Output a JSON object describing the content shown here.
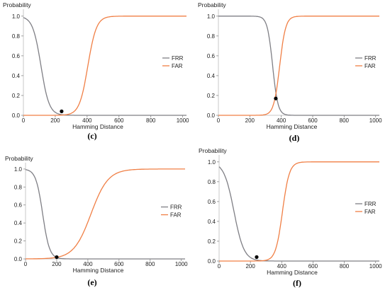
{
  "chart_data": [
    {
      "panel": "(c)",
      "type": "line",
      "ylabel": "Probability",
      "xlabel": "Hamming Distance",
      "xticks": [
        0,
        200,
        400,
        600,
        800,
        1000
      ],
      "yticks": [
        "0.0",
        "0.2",
        "0.4",
        "0.6",
        "0.8",
        "1.0"
      ],
      "xlim": [
        0,
        1024
      ],
      "ylim": [
        0,
        1.07
      ],
      "legend": "right",
      "series": [
        {
          "name": "FRR",
          "color": "#7f7f85",
          "kind": "falling",
          "mid": 110,
          "scale": 26,
          "top": 1.0
        },
        {
          "name": "FAR",
          "color": "#f07f45",
          "kind": "rising",
          "mid": 405,
          "scale": 27,
          "top": 1.0
        }
      ],
      "marker": {
        "x": 240,
        "y": 0.04
      }
    },
    {
      "panel": "(d)",
      "type": "line",
      "ylabel": "Probability",
      "xlabel": "Hamming Distance",
      "xticks": [
        0,
        200,
        400,
        600,
        800,
        1000
      ],
      "yticks": [
        "0.0",
        "0.2",
        "0.4",
        "0.6",
        "0.8",
        "1.0"
      ],
      "xlim": [
        0,
        1024
      ],
      "ylim": [
        0,
        1.07
      ],
      "legend": "right",
      "series": [
        {
          "name": "FRR",
          "color": "#7f7f85",
          "kind": "falling",
          "mid": 345,
          "scale": 17,
          "top": 1.0
        },
        {
          "name": "FAR",
          "color": "#f07f45",
          "kind": "rising",
          "mid": 390,
          "scale": 19,
          "top": 1.0
        }
      ],
      "marker": {
        "x": 365,
        "y": 0.17
      }
    },
    {
      "panel": "(e)",
      "type": "line",
      "ylabel": "Probability",
      "xlabel": "Hamming Distance",
      "xticks": [
        0,
        200,
        400,
        600,
        800,
        1000
      ],
      "yticks": [
        "0.0",
        "0.2",
        "0.4",
        "0.6",
        "0.8",
        "1.0"
      ],
      "xlim": [
        0,
        1024
      ],
      "ylim": [
        0,
        1.07
      ],
      "legend": "right",
      "series": [
        {
          "name": "FRR",
          "color": "#7f7f85",
          "kind": "falling",
          "mid": 110,
          "scale": 22,
          "top": 1.0
        },
        {
          "name": "FAR",
          "color": "#f07f45",
          "kind": "rising",
          "mid": 420,
          "scale": 55,
          "top": 1.0
        }
      ],
      "marker": {
        "x": 200,
        "y": 0.02
      }
    },
    {
      "panel": "(f)",
      "type": "line",
      "ylabel": "Probability",
      "xlabel": "Hamming Distance",
      "xticks": [
        0,
        200,
        400,
        600,
        800,
        1000
      ],
      "yticks": [
        "0.0",
        "0.2",
        "0.4",
        "0.6",
        "0.8",
        "1.0"
      ],
      "xlim": [
        0,
        1024
      ],
      "ylim": [
        0,
        1.07
      ],
      "legend": "right",
      "series": [
        {
          "name": "FRR",
          "color": "#7f7f85",
          "kind": "falling",
          "mid": 95,
          "scale": 32,
          "top": 1.0
        },
        {
          "name": "FAR",
          "color": "#f07f45",
          "kind": "rising",
          "mid": 405,
          "scale": 22,
          "top": 1.0
        }
      ],
      "marker": {
        "x": 240,
        "y": 0.04
      }
    }
  ]
}
